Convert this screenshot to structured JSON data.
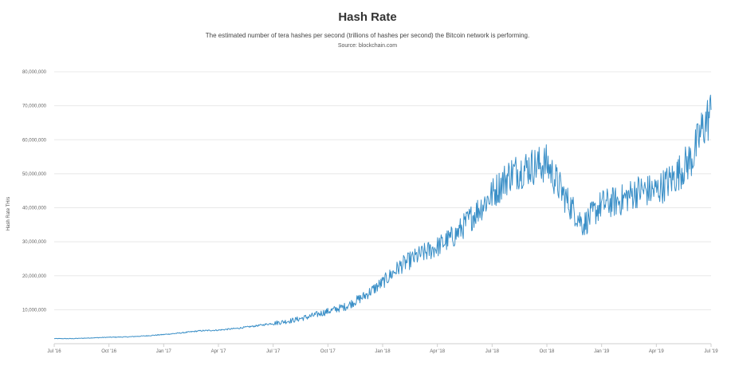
{
  "chart_data": {
    "type": "line",
    "title": "Hash Rate",
    "subtitle": "The estimated number of tera hashes per second (trillions of hashes per second) the Bitcoin network is performing.",
    "source": "Source: blockchain.com",
    "xlabel": "",
    "ylabel": "Hash Rate TH/s",
    "ylim": [
      0,
      80000000
    ],
    "y_ticks": [
      "10,000,000",
      "20,000,000",
      "30,000,000",
      "40,000,000",
      "50,000,000",
      "60,000,000",
      "70,000,000",
      "80,000,000"
    ],
    "y_tick_values": [
      10000000,
      20000000,
      30000000,
      40000000,
      50000000,
      60000000,
      70000000,
      80000000
    ],
    "x_ticks": [
      "Jul '16",
      "Oct '16",
      "Jan '17",
      "Apr '17",
      "Jul '17",
      "Oct '17",
      "Jan '18",
      "Apr '18",
      "Jul '18",
      "Oct '18",
      "Jan '19",
      "Apr '19",
      "Jul '19"
    ],
    "x_range_months": [
      0,
      36
    ],
    "grid": true,
    "line_color": "#3a8fc7",
    "series": [
      {
        "name": "Hash Rate",
        "x_months": [
          0,
          1,
          2,
          3,
          4,
          5,
          6,
          7,
          8,
          9,
          10,
          11,
          12,
          13,
          14,
          15,
          16,
          17,
          18,
          19,
          20,
          21,
          22,
          23,
          24,
          25,
          26,
          27,
          28,
          29,
          30,
          31,
          32,
          33,
          34,
          35,
          35.5,
          36
        ],
        "values": [
          1500000,
          1500000,
          1700000,
          1900000,
          2000000,
          2300000,
          2700000,
          3200000,
          3800000,
          4000000,
          4500000,
          5200000,
          6000000,
          6800000,
          8000000,
          9500000,
          11000000,
          14000000,
          18000000,
          23000000,
          26000000,
          28500000,
          32000000,
          38000000,
          44000000,
          50000000,
          52000000,
          53000000,
          43000000,
          35000000,
          41000000,
          42000000,
          45000000,
          45000000,
          49000000,
          55000000,
          63000000,
          68000000
        ]
      }
    ]
  }
}
